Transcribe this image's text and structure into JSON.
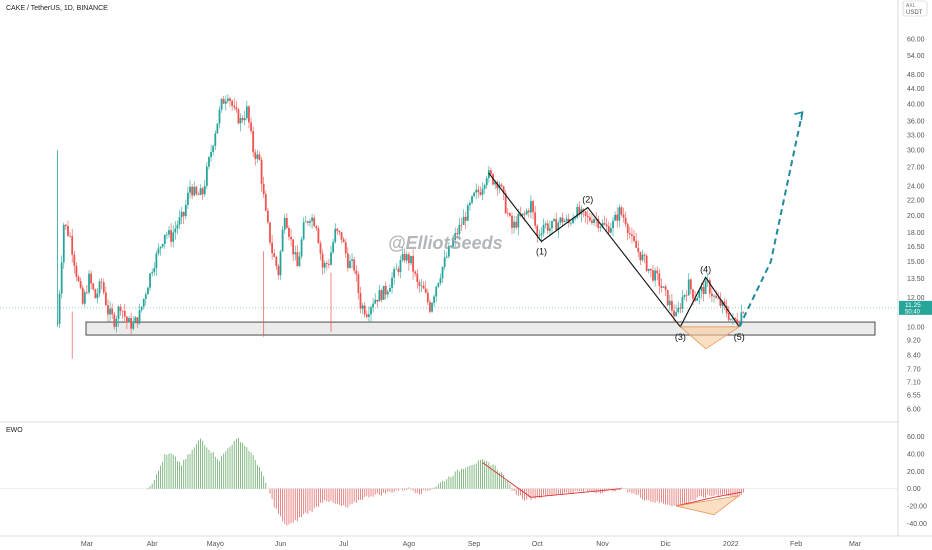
{
  "chart_data": {
    "type": "candlestick",
    "title": "CAKE / TetherUS, 1D, BINANCE",
    "watermark": "@ElliotSeeds",
    "currency_label": "USDT",
    "scale_label": "AXL",
    "y_scale": "log",
    "ylim": [
      5.6,
      70
    ],
    "y_ticks": [
      "60.00",
      "54.00",
      "48.00",
      "44.00",
      "40.00",
      "36.00",
      "33.00",
      "30.00",
      "27.00",
      "24.00",
      "22.00",
      "20.00",
      "18.00",
      "16.50",
      "15.00",
      "13.50",
      "12.00",
      "11.00",
      "10.00",
      "9.20",
      "8.40",
      "7.70",
      "7.10",
      "6.55",
      "6.00"
    ],
    "last_price": "11.25",
    "countdown": "50:40",
    "x_ticks": [
      "Mar",
      "Abr",
      "Mayo",
      "Jun",
      "Jul",
      "Ago",
      "Sep",
      "Oct",
      "Nov",
      "Dic",
      "2022",
      "Feb",
      "Mar"
    ],
    "price_path": [
      [
        "02-15",
        10.2
      ],
      [
        "02-18",
        19.0
      ],
      [
        "02-21",
        17.5
      ],
      [
        "02-24",
        14.0
      ],
      [
        "02-27",
        11.5
      ],
      [
        "03-02",
        13.5
      ],
      [
        "03-05",
        12.0
      ],
      [
        "03-08",
        13.2
      ],
      [
        "03-11",
        11.0
      ],
      [
        "03-14",
        10.4
      ],
      [
        "03-17",
        11.5
      ],
      [
        "03-20",
        10.3
      ],
      [
        "03-23",
        10.1
      ],
      [
        "03-26",
        10.8
      ],
      [
        "03-29",
        12.5
      ],
      [
        "04-01",
        14.5
      ],
      [
        "04-04",
        16.0
      ],
      [
        "04-07",
        18.0
      ],
      [
        "04-10",
        17.5
      ],
      [
        "04-13",
        19.0
      ],
      [
        "04-16",
        20.0
      ],
      [
        "04-19",
        24.0
      ],
      [
        "04-22",
        22.5
      ],
      [
        "04-25",
        23.0
      ],
      [
        "04-28",
        28.0
      ],
      [
        "05-01",
        34.0
      ],
      [
        "05-04",
        40.0
      ],
      [
        "05-07",
        43.0
      ],
      [
        "05-10",
        38.0
      ],
      [
        "05-13",
        36.0
      ],
      [
        "05-16",
        38.5
      ],
      [
        "05-19",
        30.0
      ],
      [
        "05-22",
        28.0
      ],
      [
        "05-25",
        20.0
      ],
      [
        "05-28",
        16.0
      ],
      [
        "05-31",
        14.0
      ],
      [
        "06-03",
        20.5
      ],
      [
        "06-06",
        17.0
      ],
      [
        "06-09",
        14.5
      ],
      [
        "06-12",
        18.5
      ],
      [
        "06-15",
        20.0
      ],
      [
        "06-18",
        19.0
      ],
      [
        "06-21",
        14.5
      ],
      [
        "06-24",
        15.0
      ],
      [
        "06-27",
        18.0
      ],
      [
        "06-30",
        17.5
      ],
      [
        "07-03",
        15.0
      ],
      [
        "07-06",
        14.5
      ],
      [
        "07-09",
        11.5
      ],
      [
        "07-12",
        11.0
      ],
      [
        "07-15",
        11.8
      ],
      [
        "07-18",
        12.2
      ],
      [
        "07-21",
        12.5
      ],
      [
        "07-24",
        13.5
      ],
      [
        "07-27",
        14.5
      ],
      [
        "07-30",
        15.5
      ],
      [
        "08-02",
        15.0
      ],
      [
        "08-05",
        13.0
      ],
      [
        "08-08",
        12.5
      ],
      [
        "08-11",
        11.3
      ],
      [
        "08-14",
        13.0
      ],
      [
        "08-17",
        14.5
      ],
      [
        "08-20",
        16.0
      ],
      [
        "08-23",
        17.5
      ],
      [
        "08-26",
        19.0
      ],
      [
        "08-29",
        20.5
      ],
      [
        "09-01",
        22.5
      ],
      [
        "09-04",
        23.5
      ],
      [
        "09-07",
        26.0
      ],
      [
        "09-10",
        25.0
      ],
      [
        "09-13",
        24.5
      ],
      [
        "09-16",
        21.0
      ],
      [
        "09-19",
        18.5
      ],
      [
        "09-22",
        19.5
      ],
      [
        "09-25",
        20.0
      ],
      [
        "09-28",
        21.5
      ],
      [
        "10-01",
        17.5
      ],
      [
        "10-04",
        19.0
      ],
      [
        "10-07",
        18.5
      ],
      [
        "10-10",
        19.0
      ],
      [
        "10-13",
        19.5
      ],
      [
        "10-16",
        19.0
      ],
      [
        "10-19",
        20.5
      ],
      [
        "10-22",
        20.0
      ],
      [
        "10-25",
        19.5
      ],
      [
        "10-28",
        19.8
      ],
      [
        "10-31",
        19.0
      ],
      [
        "11-03",
        18.5
      ],
      [
        "11-06",
        19.0
      ],
      [
        "11-09",
        20.5
      ],
      [
        "11-12",
        19.5
      ],
      [
        "11-15",
        17.0
      ],
      [
        "11-18",
        16.0
      ],
      [
        "11-21",
        15.0
      ],
      [
        "11-24",
        14.0
      ],
      [
        "11-27",
        13.5
      ],
      [
        "11-30",
        12.5
      ],
      [
        "12-03",
        11.5
      ],
      [
        "12-06",
        10.6
      ],
      [
        "12-09",
        12.0
      ],
      [
        "12-12",
        13.0
      ],
      [
        "12-15",
        12.0
      ],
      [
        "12-18",
        12.5
      ],
      [
        "12-21",
        13.0
      ],
      [
        "12-24",
        12.0
      ],
      [
        "12-27",
        11.5
      ],
      [
        "12-30",
        11.0
      ],
      [
        "01-02",
        10.3
      ],
      [
        "01-05",
        10.6
      ],
      [
        "01-07",
        11.25
      ]
    ],
    "support_zone": [
      9.5,
      10.3
    ],
    "elliott_waves": {
      "points": [
        [
          "09-08",
          26.0
        ],
        [
          "10-03",
          17.0
        ],
        [
          "10-25",
          21.0
        ],
        [
          "12-08",
          10.0
        ],
        [
          "12-20",
          13.6
        ],
        [
          "01-05",
          10.0
        ]
      ],
      "labels": [
        "",
        "(1)",
        "(2)",
        "(3)",
        "(4)",
        "(5)"
      ],
      "projection": [
        [
          "01-05",
          10.0
        ],
        [
          "01-20",
          15.0
        ],
        [
          "02-04",
          38.0
        ]
      ]
    },
    "indicator": {
      "name": "EWO",
      "ylim": [
        -50,
        70
      ],
      "y_ticks": [
        "60.00",
        "40.00",
        "20.00",
        "0.00",
        "-20.00",
        "-40.00"
      ],
      "series": [
        [
          "03-30",
          0
        ],
        [
          "04-03",
          15
        ],
        [
          "04-07",
          38
        ],
        [
          "04-10",
          40
        ],
        [
          "04-15",
          28
        ],
        [
          "04-20",
          44
        ],
        [
          "04-24",
          58
        ],
        [
          "04-28",
          46
        ],
        [
          "05-03",
          33
        ],
        [
          "05-08",
          50
        ],
        [
          "05-12",
          58
        ],
        [
          "05-17",
          45
        ],
        [
          "05-22",
          25
        ],
        [
          "05-26",
          0
        ],
        [
          "05-29",
          -20
        ],
        [
          "06-03",
          -42
        ],
        [
          "06-07",
          -40
        ],
        [
          "06-12",
          -30
        ],
        [
          "06-17",
          -24
        ],
        [
          "06-22",
          -12
        ],
        [
          "06-27",
          -18
        ],
        [
          "07-03",
          -22
        ],
        [
          "07-09",
          -12
        ],
        [
          "07-14",
          -8
        ],
        [
          "07-20",
          -6
        ],
        [
          "07-26",
          -2
        ],
        [
          "08-01",
          0
        ],
        [
          "08-06",
          -5
        ],
        [
          "08-12",
          0
        ],
        [
          "08-18",
          10
        ],
        [
          "08-24",
          20
        ],
        [
          "08-30",
          28
        ],
        [
          "09-05",
          32
        ],
        [
          "09-10",
          28
        ],
        [
          "09-15",
          15
        ],
        [
          "09-20",
          -4
        ],
        [
          "09-25",
          -12
        ],
        [
          "10-01",
          -10
        ],
        [
          "10-06",
          -8
        ],
        [
          "10-12",
          -6
        ],
        [
          "10-18",
          -4
        ],
        [
          "10-24",
          -3
        ],
        [
          "10-30",
          -4
        ],
        [
          "11-05",
          -2
        ],
        [
          "11-11",
          0
        ],
        [
          "11-16",
          -6
        ],
        [
          "11-21",
          -12
        ],
        [
          "11-27",
          -16
        ],
        [
          "12-03",
          -18
        ],
        [
          "12-08",
          -22
        ],
        [
          "12-13",
          -14
        ],
        [
          "12-18",
          -10
        ],
        [
          "12-23",
          -8
        ],
        [
          "12-28",
          -6
        ],
        [
          "01-02",
          -10
        ],
        [
          "01-07",
          -6
        ]
      ]
    }
  }
}
